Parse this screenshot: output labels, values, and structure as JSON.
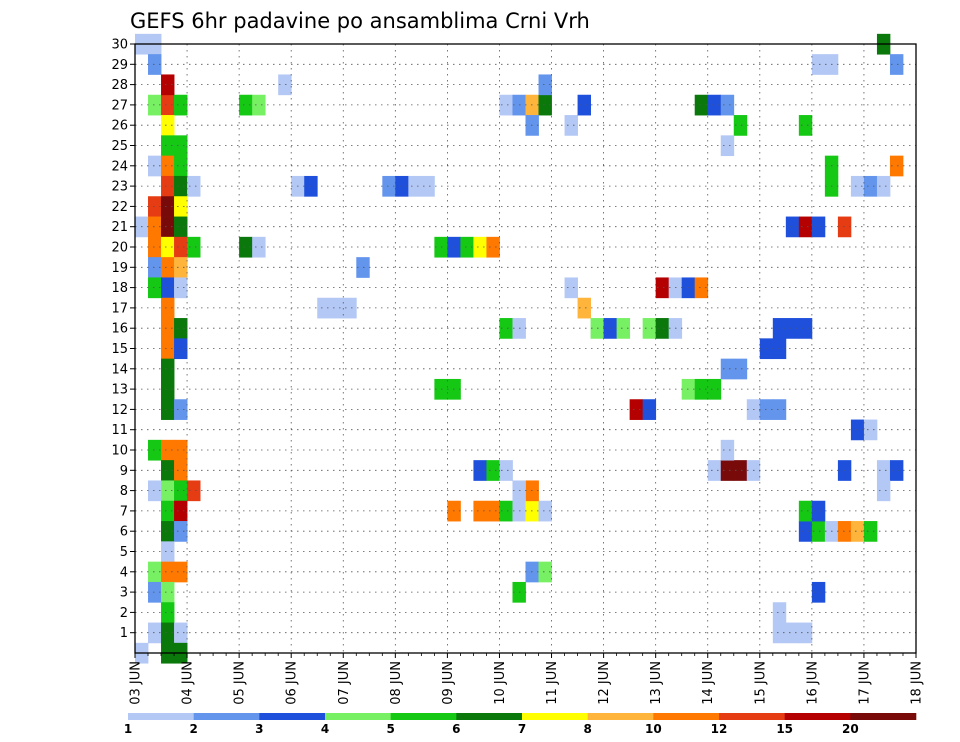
{
  "chart_data": {
    "type": "heatmap",
    "title": "GEFS 6hr padavine po ansamblima Crni Vrh",
    "xlabel": "",
    "ylabel": "",
    "x_tick_labels": [
      "03 JUN",
      "04 JUN",
      "05 JUN",
      "06 JUN",
      "07 JUN",
      "08 JUN",
      "09 JUN",
      "10 JUN",
      "11 JUN",
      "12 JUN",
      "13 JUN",
      "14 JUN",
      "15 JUN",
      "16 JUN",
      "17 JUN",
      "18 JUN"
    ],
    "y_tick_labels": [
      "1",
      "2",
      "3",
      "4",
      "5",
      "6",
      "7",
      "8",
      "9",
      "10",
      "11",
      "12",
      "13",
      "14",
      "15",
      "16",
      "17",
      "18",
      "19",
      "20",
      "21",
      "22",
      "23",
      "24",
      "25",
      "26",
      "27",
      "28",
      "29",
      "30"
    ],
    "xlim": [
      0,
      60
    ],
    "ylim": [
      0,
      30
    ],
    "x_step": "6 hr",
    "grid": true,
    "colorbar": {
      "labels": [
        "1",
        "2",
        "3",
        "4",
        "5",
        "6",
        "7",
        "8",
        "10",
        "12",
        "15",
        "20"
      ],
      "colors": [
        "#b4c8f5",
        "#6495ed",
        "#1e50dc",
        "#78f064",
        "#14c814",
        "#0a780a",
        "#ffff00",
        "#ffb43c",
        "#ff7800",
        "#e63c14",
        "#b40000",
        "#780a0a"
      ]
    },
    "cells": [
      [
        0,
        30,
        1
      ],
      [
        1,
        30,
        1
      ],
      [
        1,
        29,
        2
      ],
      [
        1,
        27,
        4
      ],
      [
        2,
        27,
        12
      ],
      [
        2,
        28,
        15
      ],
      [
        3,
        27,
        5
      ],
      [
        2,
        26,
        7
      ],
      [
        2,
        25,
        5
      ],
      [
        3,
        25,
        5
      ],
      [
        1,
        24,
        1
      ],
      [
        2,
        24,
        10
      ],
      [
        3,
        24,
        5
      ],
      [
        2,
        23,
        12
      ],
      [
        3,
        23,
        6
      ],
      [
        4,
        23,
        1
      ],
      [
        1,
        22,
        12
      ],
      [
        2,
        22,
        20
      ],
      [
        3,
        22,
        7
      ],
      [
        0,
        21,
        1
      ],
      [
        1,
        21,
        10
      ],
      [
        2,
        21,
        20
      ],
      [
        3,
        21,
        6
      ],
      [
        1,
        20,
        10
      ],
      [
        2,
        20,
        7
      ],
      [
        3,
        20,
        12
      ],
      [
        4,
        20,
        5
      ],
      [
        1,
        19,
        2
      ],
      [
        2,
        19,
        10
      ],
      [
        3,
        19,
        8
      ],
      [
        1,
        18,
        5
      ],
      [
        2,
        18,
        3
      ],
      [
        3,
        18,
        1
      ],
      [
        2,
        17,
        10
      ],
      [
        2,
        16,
        10
      ],
      [
        3,
        16,
        6
      ],
      [
        2,
        15,
        10
      ],
      [
        3,
        15,
        3
      ],
      [
        2,
        14,
        6
      ],
      [
        2,
        13,
        6
      ],
      [
        2,
        12,
        6
      ],
      [
        3,
        12,
        2
      ],
      [
        1,
        10,
        5
      ],
      [
        2,
        10,
        10
      ],
      [
        3,
        10,
        10
      ],
      [
        2,
        9,
        6
      ],
      [
        3,
        9,
        10
      ],
      [
        1,
        8,
        1
      ],
      [
        2,
        8,
        4
      ],
      [
        3,
        8,
        5
      ],
      [
        4,
        8,
        12
      ],
      [
        2,
        7,
        5
      ],
      [
        3,
        7,
        15
      ],
      [
        2,
        6,
        6
      ],
      [
        3,
        6,
        2
      ],
      [
        2,
        5,
        1
      ],
      [
        1,
        4,
        4
      ],
      [
        2,
        4,
        10
      ],
      [
        3,
        4,
        10
      ],
      [
        1,
        3,
        2
      ],
      [
        2,
        3,
        4
      ],
      [
        2,
        2,
        5
      ],
      [
        1,
        1,
        1
      ],
      [
        2,
        1,
        6
      ],
      [
        3,
        1,
        1
      ],
      [
        0,
        0,
        1
      ],
      [
        2,
        0,
        6
      ],
      [
        3,
        0,
        6
      ],
      [
        8,
        20,
        6
      ],
      [
        9,
        20,
        1
      ],
      [
        8,
        27,
        5
      ],
      [
        9,
        27,
        4
      ],
      [
        12,
        23,
        1
      ],
      [
        13,
        23,
        3
      ],
      [
        14,
        17,
        1
      ],
      [
        15,
        17,
        1
      ],
      [
        16,
        17,
        1
      ],
      [
        17,
        19,
        2
      ],
      [
        11,
        28,
        1
      ],
      [
        19,
        23,
        2
      ],
      [
        20,
        23,
        3
      ],
      [
        21,
        23,
        1
      ],
      [
        22,
        23,
        1
      ],
      [
        23,
        20,
        5
      ],
      [
        24,
        20,
        3
      ],
      [
        25,
        20,
        5
      ],
      [
        26,
        20,
        7
      ],
      [
        27,
        20,
        10
      ],
      [
        23,
        13,
        5
      ],
      [
        24,
        13,
        5
      ],
      [
        28,
        27,
        1
      ],
      [
        29,
        27,
        2
      ],
      [
        30,
        27,
        8
      ],
      [
        31,
        27,
        6
      ],
      [
        30,
        26,
        2
      ],
      [
        31,
        28,
        2
      ],
      [
        28,
        16,
        5
      ],
      [
        29,
        16,
        1
      ],
      [
        26,
        9,
        3
      ],
      [
        27,
        9,
        5
      ],
      [
        28,
        9,
        1
      ],
      [
        24,
        7,
        10
      ],
      [
        26,
        7,
        10
      ],
      [
        27,
        7,
        10
      ],
      [
        28,
        7,
        5
      ],
      [
        29,
        7,
        1
      ],
      [
        30,
        7,
        7
      ],
      [
        31,
        7,
        1
      ],
      [
        30,
        8,
        10
      ],
      [
        29,
        8,
        1
      ],
      [
        30,
        4,
        2
      ],
      [
        31,
        4,
        4
      ],
      [
        29,
        3,
        5
      ],
      [
        33,
        26,
        1
      ],
      [
        34,
        27,
        3
      ],
      [
        33,
        18,
        1
      ],
      [
        34,
        17,
        8
      ],
      [
        35,
        16,
        4
      ],
      [
        36,
        16,
        3
      ],
      [
        37,
        16,
        4
      ],
      [
        38,
        12,
        15
      ],
      [
        39,
        12,
        3
      ],
      [
        39,
        16,
        4
      ],
      [
        40,
        16,
        6
      ],
      [
        41,
        16,
        1
      ],
      [
        40,
        18,
        15
      ],
      [
        41,
        18,
        1
      ],
      [
        42,
        18,
        3
      ],
      [
        43,
        18,
        10
      ],
      [
        42,
        13,
        4
      ],
      [
        43,
        13,
        5
      ],
      [
        44,
        13,
        5
      ],
      [
        43,
        27,
        6
      ],
      [
        44,
        27,
        3
      ],
      [
        45,
        27,
        2
      ],
      [
        46,
        26,
        5
      ],
      [
        45,
        25,
        1
      ],
      [
        44,
        9,
        1
      ],
      [
        45,
        9,
        20
      ],
      [
        46,
        9,
        20
      ],
      [
        47,
        9,
        1
      ],
      [
        45,
        10,
        1
      ],
      [
        47,
        12,
        1
      ],
      [
        48,
        12,
        2
      ],
      [
        49,
        12,
        2
      ],
      [
        45,
        14,
        2
      ],
      [
        46,
        14,
        2
      ],
      [
        48,
        15,
        3
      ],
      [
        49,
        15,
        3
      ],
      [
        49,
        16,
        3
      ],
      [
        50,
        16,
        3
      ],
      [
        51,
        16,
        3
      ],
      [
        50,
        21,
        3
      ],
      [
        51,
        21,
        15
      ],
      [
        52,
        21,
        3
      ],
      [
        51,
        26,
        5
      ],
      [
        53,
        23,
        5
      ],
      [
        53,
        24,
        5
      ],
      [
        51,
        6,
        3
      ],
      [
        52,
        6,
        5
      ],
      [
        53,
        6,
        1
      ],
      [
        54,
        6,
        10
      ],
      [
        55,
        6,
        8
      ],
      [
        56,
        6,
        5
      ],
      [
        51,
        7,
        5
      ],
      [
        52,
        7,
        3
      ],
      [
        52,
        3,
        3
      ],
      [
        55,
        11,
        3
      ],
      [
        56,
        11,
        1
      ],
      [
        57,
        30,
        6
      ],
      [
        58,
        29,
        2
      ],
      [
        58,
        24,
        10
      ],
      [
        55,
        23,
        1
      ],
      [
        56,
        23,
        2
      ],
      [
        57,
        23,
        1
      ],
      [
        57,
        9,
        1
      ],
      [
        58,
        9,
        3
      ],
      [
        57,
        8,
        1
      ],
      [
        54,
        9,
        3
      ],
      [
        54,
        21,
        12
      ],
      [
        49,
        1,
        1
      ],
      [
        50,
        1,
        1
      ],
      [
        51,
        1,
        1
      ],
      [
        49,
        2,
        1
      ],
      [
        52,
        29,
        1
      ],
      [
        53,
        29,
        1
      ]
    ]
  }
}
